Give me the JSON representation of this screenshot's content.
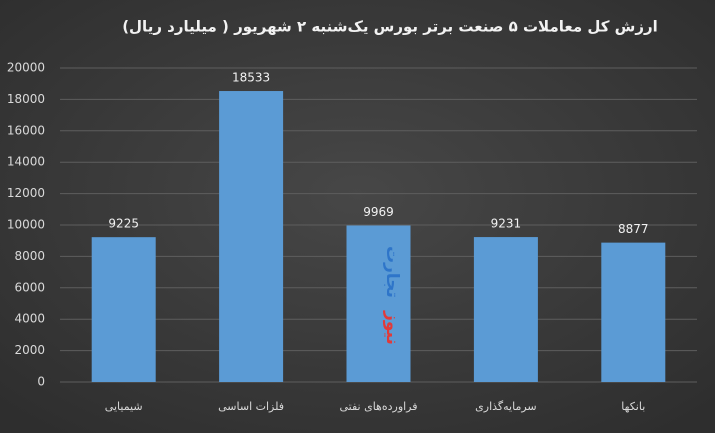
{
  "chart_data": {
    "type": "bar",
    "title": "ارزش کل معاملات ۵ صنعت برتر بورس یک‌شنبه ۲ شهریور ( میلیارد ریال)",
    "categories": [
      "شیمیایی",
      "فلزات اساسی",
      "فراورده‌های نفتی",
      "سرمایه‌گذاری",
      "بانکها"
    ],
    "values": [
      9225,
      18533,
      9969,
      9231,
      8877
    ],
    "color": "#5b9bd5",
    "ylim": [
      0,
      20000
    ],
    "yticks": [
      0,
      2000,
      4000,
      6000,
      8000,
      10000,
      12000,
      14000,
      16000,
      18000,
      20000
    ],
    "grid": true,
    "watermark": [
      "تجارت",
      "نیوز"
    ]
  }
}
